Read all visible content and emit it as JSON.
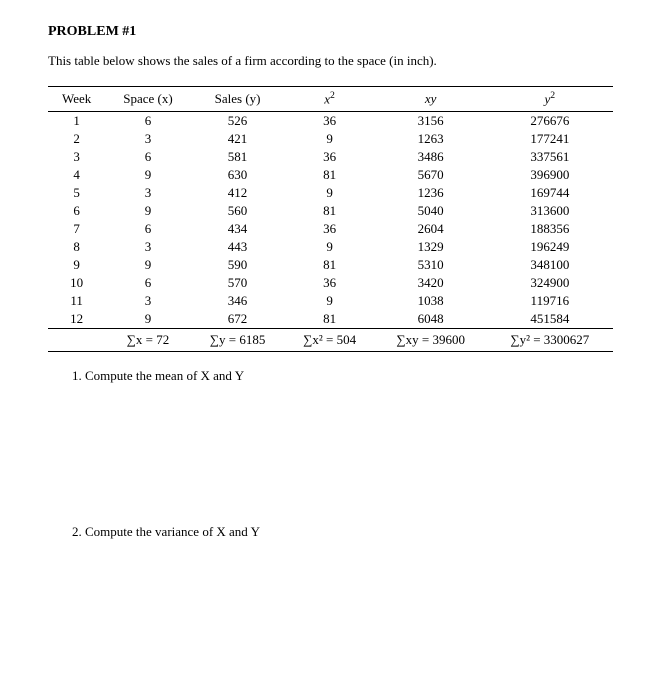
{
  "title": "PROBLEM #1",
  "description": "This table below shows the sales of a firm according to the space (in inch).",
  "table": {
    "headers": {
      "week": "Week",
      "space": "Space (x)",
      "sales": "Sales (y)",
      "x2": "x²",
      "xy": "xy",
      "y2": "y²"
    },
    "rows": [
      {
        "week": "1",
        "x": "6",
        "y": "526",
        "x2": "36",
        "xy": "3156",
        "y2": "276676"
      },
      {
        "week": "2",
        "x": "3",
        "y": "421",
        "x2": "9",
        "xy": "1263",
        "y2": "177241"
      },
      {
        "week": "3",
        "x": "6",
        "y": "581",
        "x2": "36",
        "xy": "3486",
        "y2": "337561"
      },
      {
        "week": "4",
        "x": "9",
        "y": "630",
        "x2": "81",
        "xy": "5670",
        "y2": "396900"
      },
      {
        "week": "5",
        "x": "3",
        "y": "412",
        "x2": "9",
        "xy": "1236",
        "y2": "169744"
      },
      {
        "week": "6",
        "x": "9",
        "y": "560",
        "x2": "81",
        "xy": "5040",
        "y2": "313600"
      },
      {
        "week": "7",
        "x": "6",
        "y": "434",
        "x2": "36",
        "xy": "2604",
        "y2": "188356"
      },
      {
        "week": "8",
        "x": "3",
        "y": "443",
        "x2": "9",
        "xy": "1329",
        "y2": "196249"
      },
      {
        "week": "9",
        "x": "9",
        "y": "590",
        "x2": "81",
        "xy": "5310",
        "y2": "348100"
      },
      {
        "week": "10",
        "x": "6",
        "y": "570",
        "x2": "36",
        "xy": "3420",
        "y2": "324900"
      },
      {
        "week": "11",
        "x": "3",
        "y": "346",
        "x2": "9",
        "xy": "1038",
        "y2": "119716"
      },
      {
        "week": "12",
        "x": "9",
        "y": "672",
        "x2": "81",
        "xy": "6048",
        "y2": "451584"
      }
    ],
    "sums": {
      "sumx": "∑x = 72",
      "sumy": "∑y = 6185",
      "sumx2": "∑x² = 504",
      "sumxy": "∑xy = 39600",
      "sumy2": "∑y² = 3300627"
    }
  },
  "questions": {
    "q1": "1.  Compute the mean of X and Y",
    "q2": "2.  Compute the variance of X and Y"
  }
}
